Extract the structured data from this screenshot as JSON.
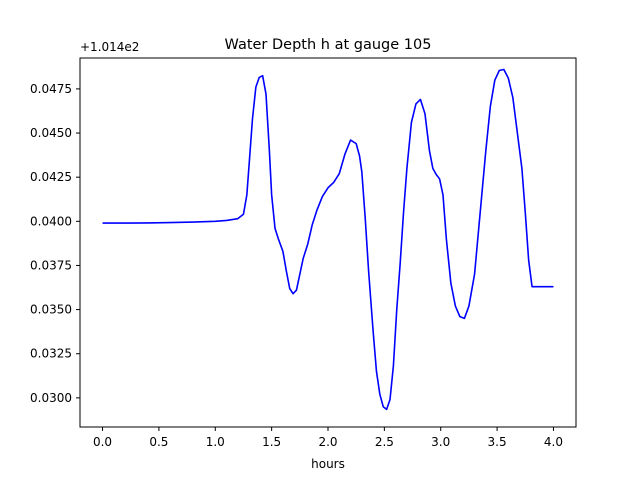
{
  "chart_data": {
    "type": "line",
    "title": "Water Depth h at gauge 105",
    "xlabel": "hours",
    "ylabel": "",
    "y_offset_label": "+1.014e2",
    "xlim": [
      -0.2,
      4.2
    ],
    "ylim": [
      0.02835,
      0.04925
    ],
    "x_ticks": [
      0.0,
      0.5,
      1.0,
      1.5,
      2.0,
      2.5,
      3.0,
      3.5,
      4.0
    ],
    "x_tick_labels": [
      "0.0",
      "0.5",
      "1.0",
      "1.5",
      "2.0",
      "2.5",
      "3.0",
      "3.5",
      "4.0"
    ],
    "y_ticks": [
      0.03,
      0.0325,
      0.035,
      0.0375,
      0.04,
      0.0425,
      0.045,
      0.0475
    ],
    "y_tick_labels": [
      "0.0300",
      "0.0325",
      "0.0350",
      "0.0375",
      "0.0400",
      "0.0425",
      "0.0450",
      "0.0475"
    ],
    "grid": false,
    "series": [
      {
        "color": "#0000ff",
        "x": [
          0.0,
          0.2,
          0.4,
          0.6,
          0.8,
          1.0,
          1.1,
          1.2,
          1.25,
          1.28,
          1.3,
          1.33,
          1.36,
          1.39,
          1.42,
          1.45,
          1.48,
          1.5,
          1.53,
          1.56,
          1.6,
          1.63,
          1.66,
          1.69,
          1.72,
          1.75,
          1.78,
          1.82,
          1.86,
          1.9,
          1.95,
          2.0,
          2.05,
          2.1,
          2.15,
          2.2,
          2.25,
          2.28,
          2.3,
          2.33,
          2.36,
          2.4,
          2.43,
          2.46,
          2.49,
          2.52,
          2.55,
          2.58,
          2.61,
          2.64,
          2.67,
          2.7,
          2.74,
          2.78,
          2.82,
          2.86,
          2.9,
          2.93,
          2.96,
          2.99,
          3.02,
          3.05,
          3.09,
          3.13,
          3.17,
          3.21,
          3.25,
          3.3,
          3.35,
          3.4,
          3.44,
          3.48,
          3.52,
          3.56,
          3.6,
          3.64,
          3.68,
          3.72,
          3.75,
          3.78,
          3.81,
          3.85,
          3.9,
          3.95,
          4.0
        ],
        "y": [
          0.0399,
          0.0399,
          0.03991,
          0.03993,
          0.03996,
          0.04,
          0.04005,
          0.04015,
          0.0404,
          0.0415,
          0.0432,
          0.0458,
          0.0476,
          0.04815,
          0.04825,
          0.0472,
          0.044,
          0.0415,
          0.0396,
          0.039,
          0.0383,
          0.0372,
          0.0362,
          0.0359,
          0.0361,
          0.037,
          0.0379,
          0.0387,
          0.0398,
          0.0406,
          0.0414,
          0.0419,
          0.0422,
          0.0427,
          0.0438,
          0.0446,
          0.0444,
          0.0437,
          0.0428,
          0.0402,
          0.0372,
          0.0338,
          0.0315,
          0.0302,
          0.0295,
          0.02935,
          0.0299,
          0.0318,
          0.035,
          0.0376,
          0.0405,
          0.043,
          0.0456,
          0.04665,
          0.0469,
          0.0461,
          0.044,
          0.043,
          0.04265,
          0.0424,
          0.0415,
          0.039,
          0.0365,
          0.0352,
          0.0346,
          0.0345,
          0.0352,
          0.037,
          0.0405,
          0.044,
          0.0465,
          0.048,
          0.04855,
          0.0486,
          0.0481,
          0.047,
          0.045,
          0.043,
          0.0405,
          0.0378,
          0.0363,
          0.0363,
          0.0363,
          0.0363,
          0.0363
        ]
      }
    ]
  }
}
